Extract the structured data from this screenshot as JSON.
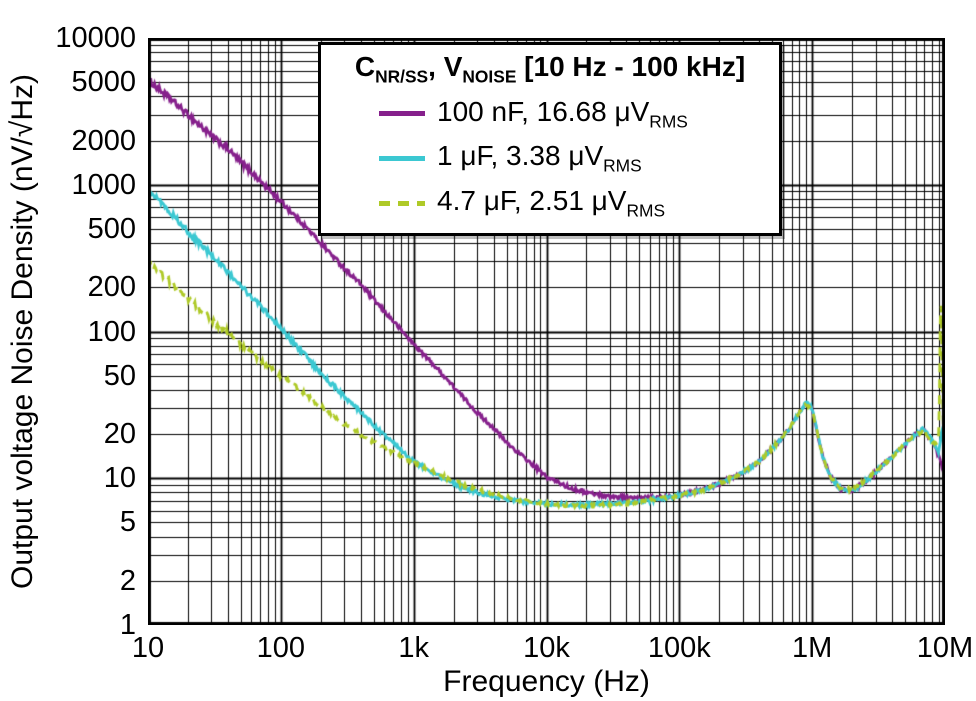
{
  "chart_data": {
    "type": "line",
    "title": "",
    "xlabel": "Frequency (Hz)",
    "ylabel": "Output voltage Noise Density (nV/√Hz)",
    "xscale": "log",
    "yscale": "log",
    "xlim": [
      10,
      10000000
    ],
    "ylim": [
      1,
      10000
    ],
    "grid": "log-minor-on",
    "legend_position": "top-center",
    "x_ticks": [
      {
        "value": 10,
        "label": "10"
      },
      {
        "value": 100,
        "label": "100"
      },
      {
        "value": 1000,
        "label": "1k"
      },
      {
        "value": 10000,
        "label": "10k"
      },
      {
        "value": 100000,
        "label": "100k"
      },
      {
        "value": 1000000,
        "label": "1M"
      },
      {
        "value": 10000000,
        "label": "10M"
      }
    ],
    "y_ticks": [
      {
        "value": 1,
        "label": "1"
      },
      {
        "value": 2,
        "label": "2"
      },
      {
        "value": 5,
        "label": "5"
      },
      {
        "value": 10,
        "label": "10"
      },
      {
        "value": 20,
        "label": "20"
      },
      {
        "value": 50,
        "label": "50"
      },
      {
        "value": 100,
        "label": "100"
      },
      {
        "value": 200,
        "label": "200"
      },
      {
        "value": 500,
        "label": "500"
      },
      {
        "value": 1000,
        "label": "1000"
      },
      {
        "value": 2000,
        "label": "2000"
      },
      {
        "value": 5000,
        "label": "5000"
      },
      {
        "value": 10000,
        "label": "10000"
      }
    ],
    "series": [
      {
        "name": "100 nF",
        "color": "#86208C",
        "dash": false,
        "points": [
          [
            10,
            5200
          ],
          [
            12,
            4500
          ],
          [
            15,
            3800
          ],
          [
            20,
            3000
          ],
          [
            25,
            2500
          ],
          [
            30,
            2150
          ],
          [
            40,
            1750
          ],
          [
            50,
            1430
          ],
          [
            70,
            1060
          ],
          [
            100,
            770
          ],
          [
            150,
            530
          ],
          [
            200,
            400
          ],
          [
            300,
            270
          ],
          [
            400,
            210
          ],
          [
            500,
            165
          ],
          [
            700,
            118
          ],
          [
            1000,
            82
          ],
          [
            1500,
            56
          ],
          [
            2000,
            42
          ],
          [
            3000,
            28
          ],
          [
            4000,
            22
          ],
          [
            5000,
            17.5
          ],
          [
            7000,
            13.5
          ],
          [
            10000,
            10.2
          ],
          [
            15000,
            8.6
          ],
          [
            20000,
            8.0
          ],
          [
            30000,
            7.5
          ],
          [
            50000,
            7.3
          ],
          [
            70000,
            7.4
          ],
          [
            100000,
            7.7
          ],
          [
            150000,
            8.4
          ],
          [
            200000,
            9.2
          ],
          [
            300000,
            11
          ],
          [
            400000,
            13
          ],
          [
            500000,
            16
          ],
          [
            600000,
            19
          ],
          [
            700000,
            23
          ],
          [
            800000,
            28
          ],
          [
            900000,
            33
          ],
          [
            1000000,
            30
          ],
          [
            1100000,
            20
          ],
          [
            1200000,
            14
          ],
          [
            1400000,
            10
          ],
          [
            1600000,
            8.6
          ],
          [
            2000000,
            8.2
          ],
          [
            2500000,
            9.5
          ],
          [
            3000000,
            11
          ],
          [
            4000000,
            14
          ],
          [
            5000000,
            17
          ],
          [
            6000000,
            20
          ],
          [
            7000000,
            21
          ],
          [
            8000000,
            18
          ],
          [
            9000000,
            14
          ],
          [
            10000000,
            10
          ]
        ]
      },
      {
        "name": "1 μF",
        "color": "#3BC8D2",
        "dash": false,
        "points": [
          [
            10,
            950
          ],
          [
            12,
            800
          ],
          [
            15,
            640
          ],
          [
            20,
            480
          ],
          [
            25,
            390
          ],
          [
            30,
            330
          ],
          [
            40,
            255
          ],
          [
            50,
            205
          ],
          [
            70,
            150
          ],
          [
            100,
            105
          ],
          [
            150,
            70
          ],
          [
            200,
            52
          ],
          [
            300,
            36
          ],
          [
            400,
            28
          ],
          [
            500,
            23
          ],
          [
            700,
            17.5
          ],
          [
            1000,
            13
          ],
          [
            1500,
            10.5
          ],
          [
            2000,
            9.2
          ],
          [
            3000,
            8.0
          ],
          [
            5000,
            7.2
          ],
          [
            7000,
            6.9
          ],
          [
            10000,
            6.7
          ],
          [
            15000,
            6.6
          ],
          [
            20000,
            6.6
          ],
          [
            30000,
            6.7
          ],
          [
            50000,
            6.9
          ],
          [
            70000,
            7.2
          ],
          [
            100000,
            7.6
          ],
          [
            150000,
            8.3
          ],
          [
            200000,
            9.1
          ],
          [
            300000,
            11
          ],
          [
            400000,
            13
          ],
          [
            500000,
            16
          ],
          [
            600000,
            19
          ],
          [
            700000,
            23
          ],
          [
            800000,
            28
          ],
          [
            900000,
            33
          ],
          [
            1000000,
            30
          ],
          [
            1100000,
            20
          ],
          [
            1200000,
            14
          ],
          [
            1400000,
            10
          ],
          [
            1600000,
            8.6
          ],
          [
            2000000,
            8.2
          ],
          [
            2500000,
            9.5
          ],
          [
            3000000,
            11
          ],
          [
            4000000,
            14
          ],
          [
            5000000,
            17
          ],
          [
            6000000,
            20
          ],
          [
            7000000,
            22
          ],
          [
            8000000,
            18
          ],
          [
            9000000,
            15
          ],
          [
            9500000,
            22
          ],
          [
            10000000,
            14
          ]
        ]
      },
      {
        "name": "4.7 μF",
        "color": "#AFCA28",
        "dash": true,
        "points": [
          [
            10,
            300
          ],
          [
            12,
            258
          ],
          [
            15,
            215
          ],
          [
            20,
            168
          ],
          [
            25,
            140
          ],
          [
            30,
            120
          ],
          [
            40,
            97
          ],
          [
            50,
            82
          ],
          [
            60,
            72
          ],
          [
            70,
            64
          ],
          [
            80,
            58
          ],
          [
            100,
            50
          ],
          [
            150,
            38
          ],
          [
            200,
            31
          ],
          [
            300,
            23.5
          ],
          [
            400,
            20
          ],
          [
            500,
            17.5
          ],
          [
            700,
            15
          ],
          [
            1000,
            12.8
          ],
          [
            1500,
            10.8
          ],
          [
            2000,
            9.6
          ],
          [
            3000,
            8.4
          ],
          [
            5000,
            7.4
          ],
          [
            7000,
            7.0
          ],
          [
            10000,
            6.7
          ],
          [
            15000,
            6.5
          ],
          [
            20000,
            6.5
          ],
          [
            30000,
            6.6
          ],
          [
            50000,
            6.9
          ],
          [
            70000,
            7.2
          ],
          [
            100000,
            7.6
          ],
          [
            150000,
            8.3
          ],
          [
            200000,
            9.2
          ],
          [
            300000,
            11
          ],
          [
            400000,
            13
          ],
          [
            500000,
            16
          ],
          [
            600000,
            19
          ],
          [
            700000,
            23
          ],
          [
            800000,
            28
          ],
          [
            900000,
            32
          ],
          [
            1000000,
            29
          ],
          [
            1100000,
            20
          ],
          [
            1200000,
            14
          ],
          [
            1400000,
            10
          ],
          [
            1600000,
            8.7
          ],
          [
            2000000,
            8.3
          ],
          [
            2500000,
            9.6
          ],
          [
            3000000,
            11
          ],
          [
            4000000,
            14
          ],
          [
            5000000,
            17
          ],
          [
            6000000,
            20
          ],
          [
            7000000,
            21
          ],
          [
            8000000,
            17
          ],
          [
            9000000,
            18
          ],
          [
            9300000,
            240
          ],
          [
            9600000,
            30
          ],
          [
            10000000,
            12
          ]
        ]
      }
    ]
  },
  "legend": {
    "title": "C_{NR/SS}, V_{NOISE} [10 Hz - 100 kHz]",
    "entries": [
      {
        "label": "100 nF, 16.68 μV_{RMS}"
      },
      {
        "label": "1 μF, 3.38 μV_{RMS}"
      },
      {
        "label": "4.7 μF, 2.51 μV_{RMS}"
      }
    ]
  }
}
